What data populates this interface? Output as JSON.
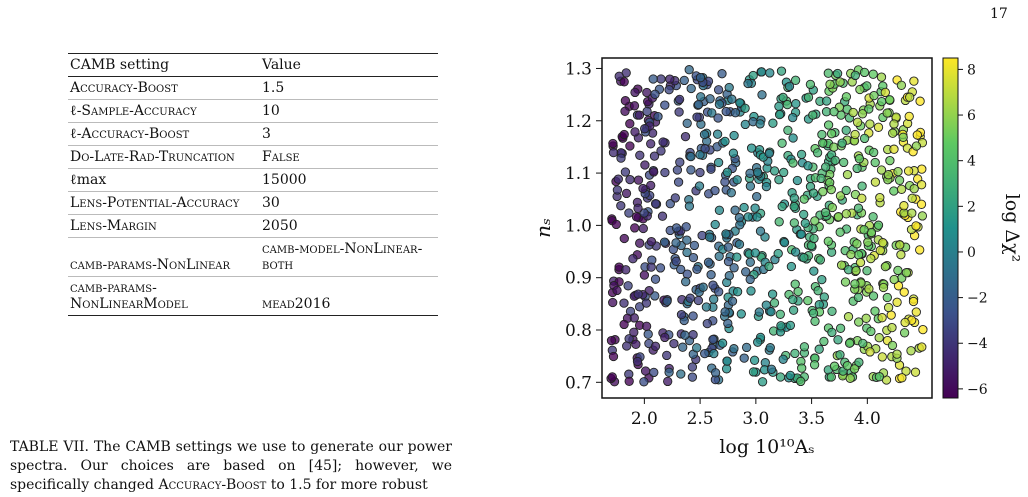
{
  "page_number": "17",
  "table": {
    "headers": [
      "CAMB setting",
      "Value"
    ],
    "rows": [
      {
        "setting": "Accuracy-Boost",
        "value": "1.5"
      },
      {
        "setting": "ℓ-Sample-Accuracy",
        "value": "10"
      },
      {
        "setting": "ℓ-Accuracy-Boost",
        "value": "3"
      },
      {
        "setting": "Do-Late-Rad-Truncation",
        "value": "False"
      },
      {
        "setting": "ℓmax",
        "value": "15000"
      },
      {
        "setting": "Lens-Potential-Accuracy",
        "value": "30"
      },
      {
        "setting": "Lens-Margin",
        "value": "2050"
      },
      {
        "setting": "camb-params-NonLinear",
        "value": "camb-model-NonLinear-both"
      },
      {
        "setting": "camb-params-NonLinearModel",
        "value": "mead2016"
      }
    ]
  },
  "caption": {
    "text": "TABLE VII. The CAMB settings we use to generate our power spectra. Our choices are based on [45]; however, we specifically changed Accuracy-Boost to 1.5 for more robust"
  },
  "chart_data": {
    "type": "scatter",
    "xlabel": "log 10¹⁰Aₛ",
    "ylabel": "nₛ",
    "colorbar_label": "log Δχ²",
    "xlim": [
      1.62,
      4.58
    ],
    "ylim": [
      0.67,
      1.32
    ],
    "x_ticks": [
      "2.0",
      "2.5",
      "3.0",
      "3.5",
      "4.0"
    ],
    "y_ticks": [
      "0.7",
      "0.8",
      "0.9",
      "1.0",
      "1.1",
      "1.2",
      "1.3"
    ],
    "colorbar_range": [
      -6.4,
      8.5
    ],
    "colorbar_ticks": [
      "8",
      "6",
      "4",
      "2",
      "0",
      "−2",
      "−4",
      "−6"
    ],
    "colormap": [
      "#440154",
      "#3b528b",
      "#21918c",
      "#5ec962",
      "#fde725"
    ],
    "x_range_sampled": [
      1.7,
      4.5
    ],
    "y_range_sampled": [
      0.7,
      1.3
    ],
    "point_count": 900,
    "trend": "color value increases with log 10^10 A_s, approximately from -6 at 1.7 to 8 at 4.5"
  }
}
